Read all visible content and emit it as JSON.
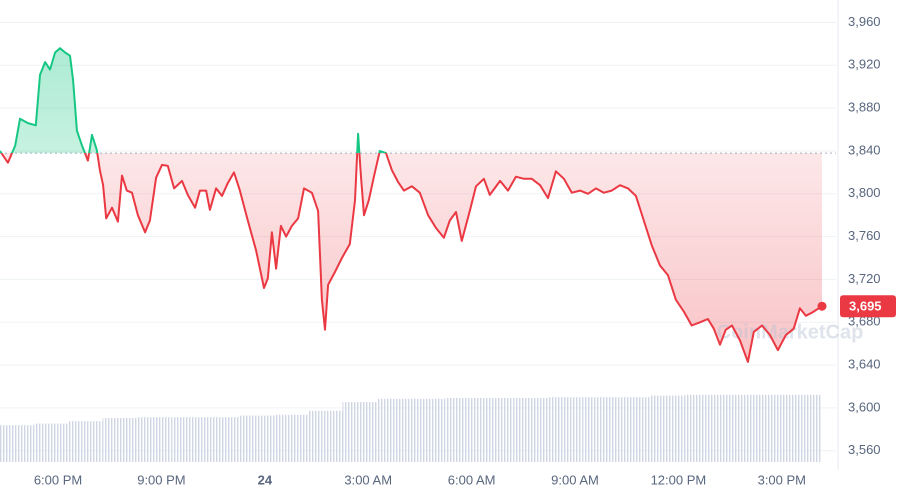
{
  "chart_data": {
    "type": "line",
    "watermark": "CoinMarketCap",
    "xlim": [
      16.2,
      40.05
    ],
    "ylim": [
      3542,
      3981
    ],
    "grid": true,
    "reference_line": 3838,
    "up_color": "#16c784",
    "down_color": "#ea3943",
    "xticks": [
      {
        "value": 18,
        "label": "6:00 PM"
      },
      {
        "value": 21,
        "label": "9:00 PM"
      },
      {
        "value": 24,
        "label": "24"
      },
      {
        "value": 27,
        "label": "3:00 AM"
      },
      {
        "value": 30,
        "label": "6:00 AM"
      },
      {
        "value": 33,
        "label": "9:00 AM"
      },
      {
        "value": 36,
        "label": "12:00 PM"
      },
      {
        "value": 39,
        "label": "3:00 PM"
      }
    ],
    "yticks": [
      {
        "value": 3960,
        "label": "3,960"
      },
      {
        "value": 3920,
        "label": "3,920"
      },
      {
        "value": 3880,
        "label": "3,880"
      },
      {
        "value": 3840,
        "label": "3,840"
      },
      {
        "value": 3800,
        "label": "3,800"
      },
      {
        "value": 3760,
        "label": "3,760"
      },
      {
        "value": 3720,
        "label": "3,720"
      },
      {
        "value": 3680,
        "label": "3,680"
      },
      {
        "value": 3640,
        "label": "3,640"
      },
      {
        "value": 3600,
        "label": "3,600"
      },
      {
        "value": 3560,
        "label": "3,560"
      }
    ],
    "last_price": {
      "value": 3695,
      "label": "3,695"
    },
    "series": [
      {
        "x": [
          16.2,
          16.43,
          16.64,
          16.78,
          17.01,
          17.24,
          17.36,
          17.51,
          17.65,
          17.8,
          17.94,
          18.09,
          18.23,
          18.32,
          18.43,
          18.58,
          18.75,
          18.87,
          19.01,
          19.1,
          19.19,
          19.28,
          19.45,
          19.62,
          19.74,
          19.88,
          20.03,
          20.2,
          20.41,
          20.55,
          20.73,
          20.9,
          21.07,
          21.25,
          21.48,
          21.65,
          21.86,
          22.0,
          22.18,
          22.29,
          22.47,
          22.64,
          22.81,
          22.99,
          23.16,
          23.39,
          23.63,
          23.86,
          23.97,
          24.09,
          24.21,
          24.35,
          24.5,
          24.67,
          24.85,
          25.02,
          25.25,
          25.43,
          25.54,
          25.63,
          25.72,
          25.92,
          26.12,
          26.35,
          26.5,
          26.59,
          26.67,
          26.76,
          26.9,
          27.05,
          27.22,
          27.4,
          27.57,
          27.75,
          27.92,
          28.15,
          28.38,
          28.62,
          28.85,
          29.08,
          29.25,
          29.43,
          29.6,
          29.83,
          30.01,
          30.24,
          30.41,
          30.71,
          30.94,
          31.17,
          31.4,
          31.63,
          31.87,
          32.1,
          32.33,
          32.56,
          32.79,
          33.03,
          33.26,
          33.49,
          33.72,
          33.95,
          34.19,
          34.42,
          34.65,
          34.88,
          35.11,
          35.35,
          35.58,
          35.81,
          36.04,
          36.27,
          36.51,
          36.74,
          36.91,
          37.09,
          37.26,
          37.44,
          37.67,
          37.9,
          38.07,
          38.31,
          38.54,
          38.77,
          39.0,
          39.23,
          39.41,
          39.58,
          39.76,
          40.05
        ],
        "values": [
          3840,
          3829,
          3845,
          3870,
          3866,
          3864,
          3911,
          3923,
          3916,
          3932,
          3936,
          3932,
          3929,
          3906,
          3859,
          3845,
          3831,
          3855,
          3841,
          3822,
          3808,
          3777,
          3787,
          3774,
          3817,
          3803,
          3801,
          3780,
          3764,
          3775,
          3815,
          3827,
          3826,
          3805,
          3812,
          3799,
          3787,
          3803,
          3803,
          3785,
          3805,
          3798,
          3810,
          3820,
          3803,
          3775,
          3747,
          3712,
          3721,
          3764,
          3730,
          3770,
          3760,
          3770,
          3777,
          3805,
          3801,
          3784,
          3701,
          3673,
          3715,
          3727,
          3740,
          3753,
          3794,
          3856,
          3817,
          3780,
          3794,
          3816,
          3840,
          3838,
          3822,
          3811,
          3803,
          3807,
          3801,
          3780,
          3768,
          3759,
          3775,
          3783,
          3756,
          3784,
          3807,
          3814,
          3799,
          3812,
          3803,
          3816,
          3814,
          3814,
          3808,
          3796,
          3821,
          3814,
          3801,
          3803,
          3800,
          3805,
          3801,
          3803,
          3808,
          3805,
          3798,
          3775,
          3752,
          3733,
          3724,
          3701,
          3690,
          3677,
          3680,
          3683,
          3674,
          3659,
          3673,
          3677,
          3663,
          3643,
          3671,
          3677,
          3668,
          3654,
          3668,
          3674,
          3693,
          3686,
          3689,
          3695
        ]
      }
    ],
    "volume": {
      "color": "#cfd6e4",
      "ylim": [
        0,
        100
      ],
      "values": [
        46,
        48,
        51,
        55,
        56,
        56,
        56,
        58,
        59,
        64,
        75,
        79,
        79,
        80,
        80,
        80,
        81,
        81,
        81,
        83,
        84,
        84,
        84,
        84
      ]
    }
  }
}
